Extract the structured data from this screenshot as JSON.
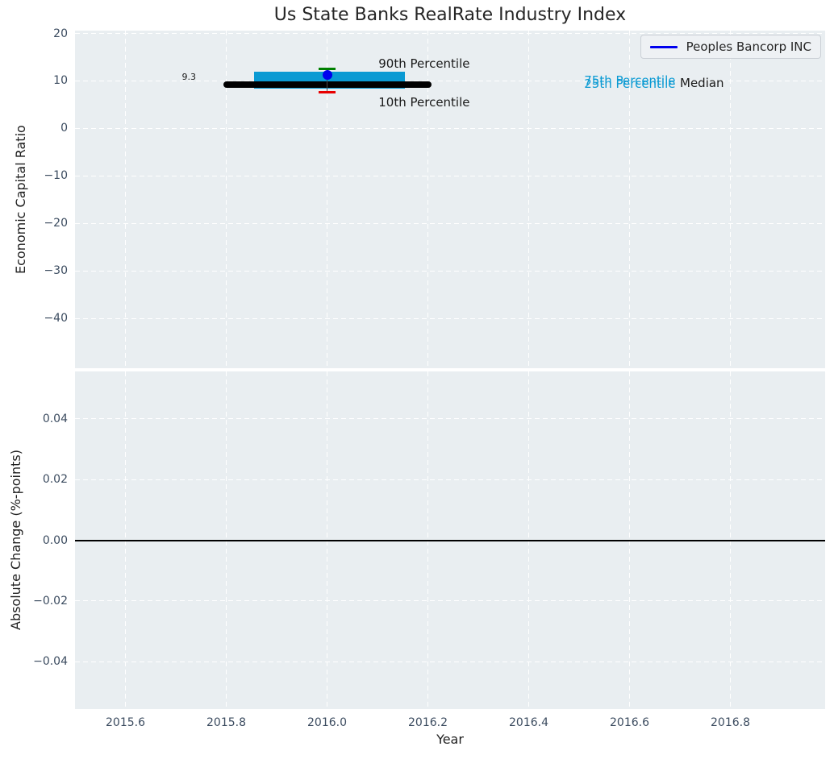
{
  "title": "Us State Banks RealRate Industry Index",
  "legend": {
    "items": [
      {
        "label": "Peoples Bancorp INC",
        "color": "#0000ee"
      }
    ],
    "position": "upper right"
  },
  "colors": {
    "figure_bg": "#ffffff",
    "plot_bg": "#e9eef1",
    "grid": "#ffffff",
    "tick_label": "#3c4c60",
    "axis_label": "#1f1f1f",
    "title": "#262626"
  },
  "chart_data": [
    {
      "id": "economic-capital-ratio",
      "type": "box",
      "title": "Us State Banks RealRate Industry Index",
      "ylabel": "Economic Capital Ratio",
      "xlim": [
        2015.5,
        2016.988
      ],
      "ylim": [
        -50.5,
        20.6
      ],
      "grid": true,
      "show_xtick_labels": false,
      "xticks": [
        {
          "v": 2015.6,
          "label": "2015.6"
        },
        {
          "v": 2015.8,
          "label": "2015.8"
        },
        {
          "v": 2016.0,
          "label": "2016.0"
        },
        {
          "v": 2016.2,
          "label": "2016.2"
        },
        {
          "v": 2016.4,
          "label": "2016.4"
        },
        {
          "v": 2016.6,
          "label": "2016.6"
        },
        {
          "v": 2016.8,
          "label": "2016.8"
        }
      ],
      "yticks": [
        {
          "v": 20,
          "label": "20"
        },
        {
          "v": 10,
          "label": "10"
        },
        {
          "v": 0,
          "label": "0"
        },
        {
          "v": -10,
          "label": "−10"
        },
        {
          "v": -20,
          "label": "−20"
        },
        {
          "v": -30,
          "label": "−30"
        },
        {
          "v": -40,
          "label": "−40"
        }
      ],
      "colors": {
        "box": "#0a9ad3",
        "median": "#000000",
        "point": "#0000ee",
        "p90_cap": "#008000",
        "p10_cap": "#e80000",
        "whisker": "#4a4a4a"
      },
      "series": {
        "x": 2016.0,
        "median": 9.3,
        "median_label": "9.3",
        "median_span": [
          2015.8,
          2016.2
        ],
        "p75": 11.9,
        "p25": 8.4,
        "box_span": [
          2015.855,
          2016.155
        ],
        "p90": 12.5,
        "p10": 7.7,
        "cap_span": [
          2015.983,
          2016.017
        ],
        "company_point": {
          "name": "Peoples Bancorp INC",
          "value": 11.3
        }
      },
      "annotations": [
        {
          "text": "90th Percentile",
          "x": 2016.102,
          "y": 13.4,
          "color": "#1a1a1a",
          "size": 15,
          "align": "left"
        },
        {
          "text": "10th Percentile",
          "x": 2016.102,
          "y": 5.4,
          "color": "#1a1a1a",
          "size": 15,
          "align": "left"
        },
        {
          "text": "75th Percentile",
          "x": 2016.51,
          "y": 9.9,
          "color": "#0a9ad3",
          "size": 15,
          "align": "left"
        },
        {
          "text": "25th Percentile",
          "x": 2016.51,
          "y": 9.3,
          "color": "#0a9ad3",
          "size": 15,
          "align": "left"
        },
        {
          "text": "Median",
          "x": 2016.7,
          "y": 9.4,
          "color": "#1a1a1a",
          "size": 15,
          "align": "left"
        },
        {
          "text": "9.3",
          "x": 2015.74,
          "y": 10.8,
          "color": "#1a1a1a",
          "size": 11,
          "align": "right"
        }
      ]
    },
    {
      "id": "absolute-change",
      "type": "line",
      "ylabel": "Absolute Change (%-points)",
      "xlabel": "Year",
      "xlim": [
        2015.5,
        2016.988
      ],
      "ylim": [
        -0.0555,
        0.0555
      ],
      "grid": true,
      "show_xtick_labels": true,
      "zero_line": 0.0,
      "series": [],
      "xticks": [
        {
          "v": 2015.6,
          "label": "2015.6"
        },
        {
          "v": 2015.8,
          "label": "2015.8"
        },
        {
          "v": 2016.0,
          "label": "2016.0"
        },
        {
          "v": 2016.2,
          "label": "2016.2"
        },
        {
          "v": 2016.4,
          "label": "2016.4"
        },
        {
          "v": 2016.6,
          "label": "2016.6"
        },
        {
          "v": 2016.8,
          "label": "2016.8"
        }
      ],
      "yticks": [
        {
          "v": 0.04,
          "label": "0.04"
        },
        {
          "v": 0.02,
          "label": "0.02"
        },
        {
          "v": 0.0,
          "label": "0.00"
        },
        {
          "v": -0.02,
          "label": "−0.02"
        },
        {
          "v": -0.04,
          "label": "−0.04"
        }
      ]
    }
  ]
}
